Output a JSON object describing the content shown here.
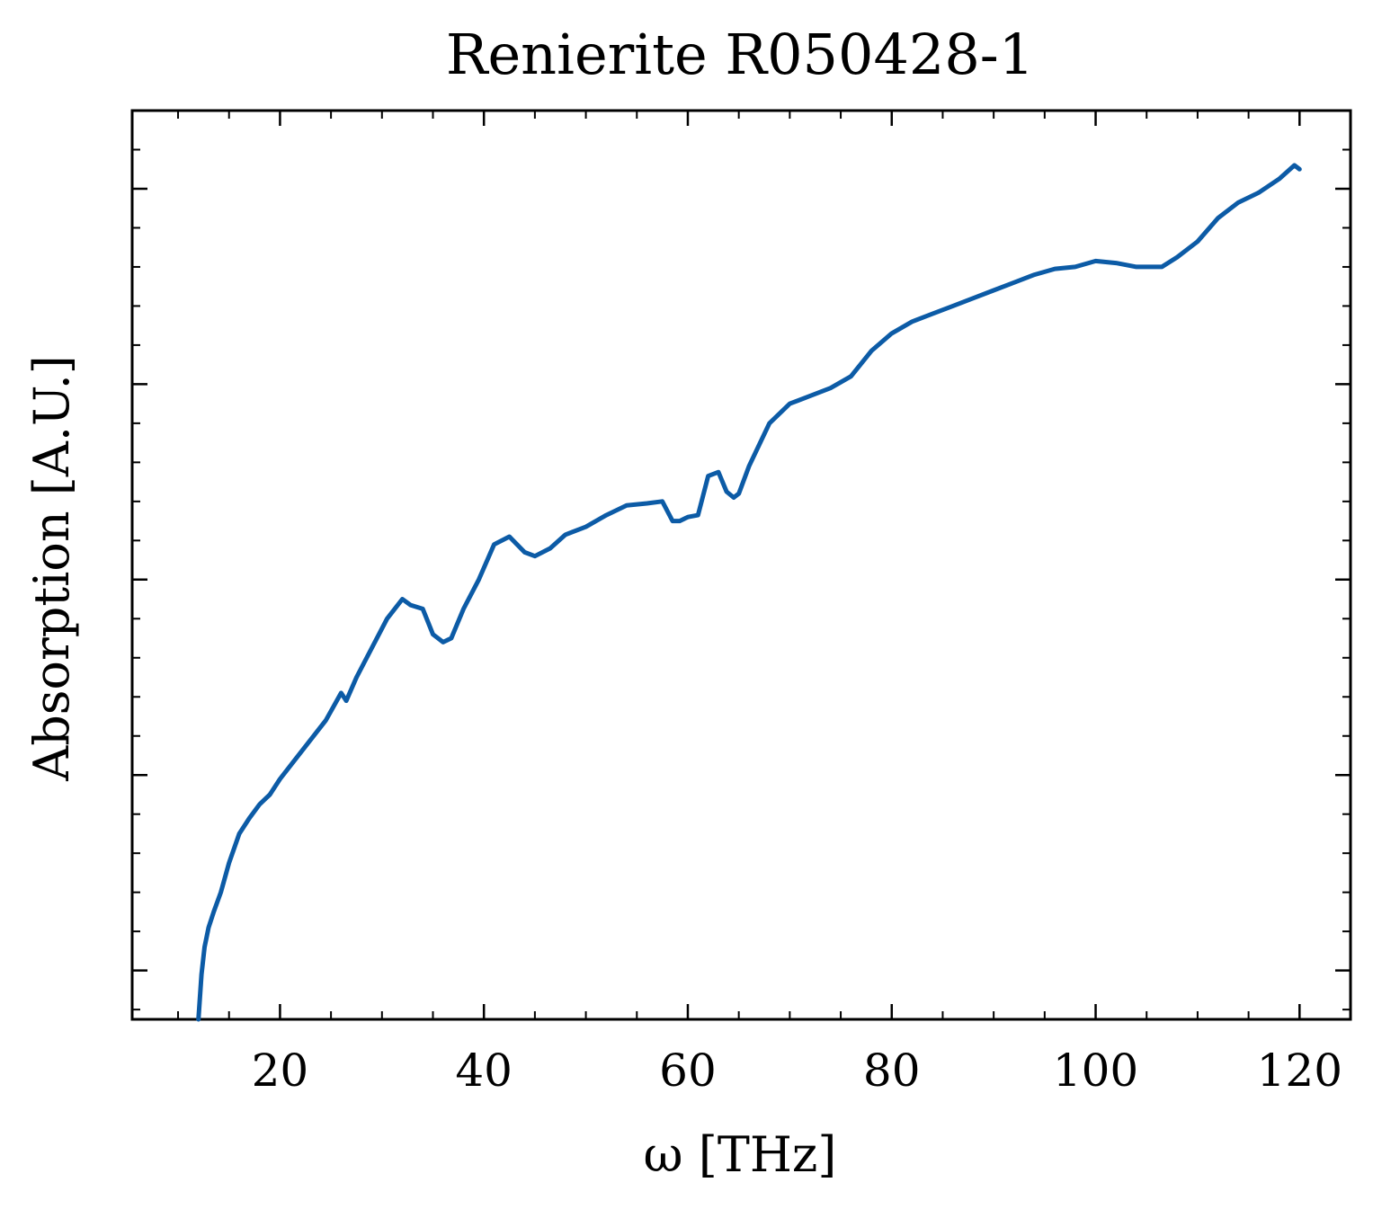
{
  "chart_data": {
    "type": "line",
    "title": "Renierite R050428-1",
    "xlabel": "ω [THz]",
    "ylabel": "Absorption [A.U.]",
    "xlim": [
      5.5,
      125
    ],
    "ylim": [
      -0.25,
      4.4
    ],
    "x_ticks": [
      20,
      40,
      60,
      80,
      100,
      120
    ],
    "x_tick_labels": [
      "20",
      "40",
      "60",
      "80",
      "100",
      "120"
    ],
    "y_ticks": [
      0,
      1,
      2,
      3,
      4
    ],
    "y_tick_labels": [
      "",
      "",
      "",
      "",
      ""
    ],
    "grid": false,
    "series": [
      {
        "color": "#0c5ba6",
        "x": [
          12.0,
          12.3,
          12.6,
          13.0,
          13.5,
          14.2,
          15.0,
          16.0,
          17.0,
          18.0,
          19.0,
          20.0,
          21.5,
          23.0,
          24.5,
          26.0,
          26.5,
          27.5,
          29.0,
          30.5,
          32.0,
          32.8,
          34.0,
          35.0,
          36.0,
          36.8,
          38.0,
          39.5,
          41.0,
          42.5,
          44.0,
          45.0,
          46.5,
          48.0,
          50.0,
          52.0,
          54.0,
          56.0,
          57.5,
          58.5,
          59.2,
          60.0,
          61.0,
          62.0,
          63.0,
          63.8,
          64.5,
          65.0,
          66.0,
          68.0,
          70.0,
          72.0,
          74.0,
          76.0,
          78.0,
          80.0,
          82.0,
          84.0,
          86.0,
          88.0,
          90.0,
          92.0,
          94.0,
          96.0,
          98.0,
          100.0,
          102.0,
          104.0,
          105.5,
          106.5,
          108.0,
          110.0,
          112.0,
          114.0,
          116.0,
          118.0,
          119.5,
          120.0
        ],
        "y": [
          -0.25,
          -0.02,
          0.12,
          0.22,
          0.3,
          0.4,
          0.55,
          0.7,
          0.78,
          0.85,
          0.9,
          0.98,
          1.08,
          1.18,
          1.28,
          1.42,
          1.38,
          1.5,
          1.65,
          1.8,
          1.9,
          1.87,
          1.85,
          1.72,
          1.68,
          1.7,
          1.85,
          2.0,
          2.18,
          2.22,
          2.14,
          2.12,
          2.16,
          2.23,
          2.27,
          2.33,
          2.38,
          2.39,
          2.4,
          2.3,
          2.3,
          2.32,
          2.33,
          2.53,
          2.55,
          2.45,
          2.42,
          2.44,
          2.58,
          2.8,
          2.9,
          2.94,
          2.98,
          3.04,
          3.17,
          3.26,
          3.32,
          3.36,
          3.4,
          3.44,
          3.48,
          3.52,
          3.56,
          3.59,
          3.6,
          3.63,
          3.62,
          3.6,
          3.6,
          3.6,
          3.65,
          3.73,
          3.85,
          3.93,
          3.98,
          4.05,
          4.12,
          4.1
        ]
      }
    ]
  }
}
